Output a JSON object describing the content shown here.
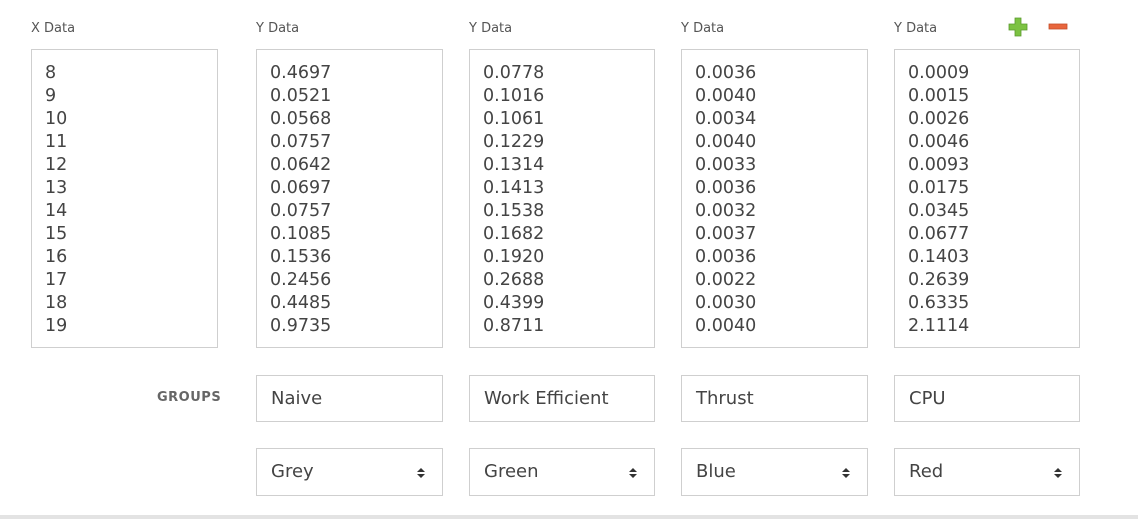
{
  "x_column": {
    "label": "X Data",
    "values": [
      "8",
      "9",
      "10",
      "11",
      "12",
      "13",
      "14",
      "15",
      "16",
      "17",
      "18",
      "19"
    ]
  },
  "y_columns": [
    {
      "label": "Y Data",
      "values": [
        "0.4697",
        "0.0521",
        "0.0568",
        "0.0757",
        "0.0642",
        "0.0697",
        "0.0757",
        "0.1085",
        "0.1536",
        "0.2456",
        "0.4485",
        "0.9735"
      ],
      "group": "Naive",
      "color": "Grey"
    },
    {
      "label": "Y Data",
      "values": [
        "0.0778",
        "0.1016",
        "0.1061",
        "0.1229",
        "0.1314",
        "0.1413",
        "0.1538",
        "0.1682",
        "0.1920",
        "0.2688",
        "0.4399",
        "0.8711"
      ],
      "group": "Work Efficient",
      "color": "Green"
    },
    {
      "label": "Y Data",
      "values": [
        "0.0036",
        "0.0040",
        "0.0034",
        "0.0040",
        "0.0033",
        "0.0036",
        "0.0032",
        "0.0037",
        "0.0036",
        "0.0022",
        "0.0030",
        "0.0040"
      ],
      "group": "Thrust",
      "color": "Blue"
    },
    {
      "label": "Y Data",
      "values": [
        "0.0009",
        "0.0015",
        "0.0026",
        "0.0046",
        "0.0093",
        "0.0175",
        "0.0345",
        "0.0677",
        "0.1403",
        "0.2639",
        "0.6335",
        "2.1114"
      ],
      "group": "CPU",
      "color": "Red"
    }
  ],
  "groups_label": "GROUPS",
  "icons": {
    "add": "plus-icon",
    "remove": "minus-icon",
    "add_color": "#7cc242",
    "remove_color": "#e8663d"
  }
}
